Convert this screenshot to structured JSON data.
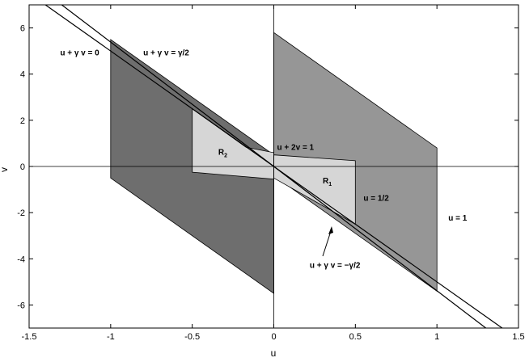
{
  "chart_data": {
    "type": "area",
    "title": "",
    "xlabel": "u",
    "ylabel": "v",
    "xlim": [
      -1.5,
      1.5
    ],
    "ylim": [
      -7,
      7
    ],
    "xticks": [
      "-1.5",
      "-1",
      "-0.5",
      "0",
      "0.5",
      "1",
      "1.5"
    ],
    "yticks": [
      "-6",
      "-4",
      "-2",
      "0",
      "2",
      "4",
      "6"
    ],
    "grid": false,
    "regions": [
      {
        "name": "dark-parallelogram",
        "fill": "#6e6e6e",
        "points": [
          [
            -1,
            5.5
          ],
          [
            0,
            0.5
          ],
          [
            0,
            -5.5
          ],
          [
            -1,
            -0.5
          ]
        ]
      },
      {
        "name": "mid-parallelogram",
        "fill": "#969696",
        "points": [
          [
            0,
            5.8
          ],
          [
            1,
            0.8
          ],
          [
            1,
            -5.4
          ],
          [
            0,
            -0.4
          ]
        ]
      },
      {
        "name": "R2",
        "fill": "#d6d6d6",
        "points": [
          [
            -0.5,
            2.5
          ],
          [
            -0.17,
            0.83
          ],
          [
            0,
            0.6
          ],
          [
            0,
            -0.55
          ],
          [
            -0.5,
            -0.25
          ]
        ]
      },
      {
        "name": "R1",
        "fill": "#d6d6d6",
        "points": [
          [
            0,
            0.5
          ],
          [
            0.5,
            0.25
          ],
          [
            0.5,
            -2.5
          ],
          [
            0,
            -0.5
          ]
        ]
      }
    ],
    "lines": [
      {
        "name": "u + gamma v = 0",
        "points": [
          [
            -1.4,
            7
          ],
          [
            1.4,
            -7
          ]
        ]
      },
      {
        "name": "u + gamma v = gamma/2",
        "points": [
          [
            -1.3,
            7
          ],
          [
            1.3,
            -7
          ]
        ]
      }
    ],
    "annotations": [
      {
        "text": "u + γ v = 0",
        "x": -1.31,
        "y": 4.95
      },
      {
        "text": "u + γ v = γ/2",
        "x": -0.8,
        "y": 4.95
      },
      {
        "text": "u + 2v = 1",
        "x": 0.02,
        "y": 0.85
      },
      {
        "text": "u = 1/2",
        "x": 0.55,
        "y": -1.35
      },
      {
        "text": "u = 1",
        "x": 1.07,
        "y": -2.2
      },
      {
        "text": "u + γ v = −γ/2",
        "x": 0.22,
        "y": -4.25
      }
    ],
    "region_labels": [
      {
        "text": "R",
        "sub": "2",
        "x": -0.34,
        "y": 0.65
      },
      {
        "text": "R",
        "sub": "1",
        "x": 0.3,
        "y": -0.6
      }
    ]
  }
}
